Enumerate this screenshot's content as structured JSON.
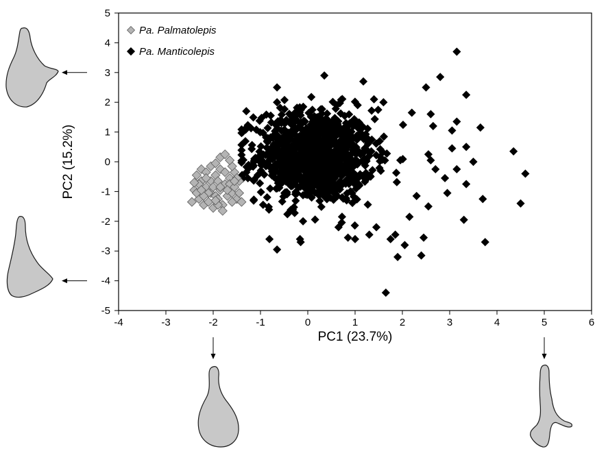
{
  "chart_data": {
    "type": "scatter",
    "xlabel": "PC1 (23.7%)",
    "ylabel": "PC2 (15.2%)",
    "xlim": [
      -4,
      6
    ],
    "ylim": [
      -5,
      5
    ],
    "xticks": [
      -4,
      -3,
      -2,
      -1,
      0,
      1,
      2,
      3,
      4,
      5,
      6
    ],
    "yticks": [
      -5,
      -4,
      -3,
      -2,
      -1,
      0,
      1,
      2,
      3,
      4,
      5
    ],
    "grid": false,
    "legend_position": "top-left",
    "marker": "diamond",
    "series": [
      {
        "name": "Pa. Palmatolepis",
        "color": "#b4b4b4",
        "stroke": "#5a5a5a",
        "points": [
          [
            -2.35,
            -0.45
          ],
          [
            -2.25,
            -0.65
          ],
          [
            -2.15,
            -0.85
          ],
          [
            -2.05,
            -1.05
          ],
          [
            -1.95,
            -1.15
          ],
          [
            -1.85,
            -0.95
          ],
          [
            -1.75,
            -0.75
          ],
          [
            -1.65,
            -0.55
          ],
          [
            -1.55,
            -0.35
          ],
          [
            -1.45,
            -0.65
          ],
          [
            -2.4,
            -0.95
          ],
          [
            -2.3,
            -1.25
          ],
          [
            -2.2,
            -1.45
          ],
          [
            -2.1,
            -1.35
          ],
          [
            -2.0,
            -1.55
          ],
          [
            -1.9,
            -1.25
          ],
          [
            -1.8,
            -1.45
          ],
          [
            -1.7,
            -1.15
          ],
          [
            -1.6,
            -1.05
          ],
          [
            -1.5,
            -1.25
          ],
          [
            -2.45,
            -1.35
          ],
          [
            -2.35,
            -1.05
          ],
          [
            -2.25,
            -0.25
          ],
          [
            -2.15,
            -0.35
          ],
          [
            -2.05,
            -0.15
          ],
          [
            -1.95,
            -0.05
          ],
          [
            -1.85,
            0.15
          ],
          [
            -1.75,
            0.25
          ],
          [
            -1.85,
            -0.25
          ],
          [
            -1.95,
            -0.45
          ],
          [
            -2.05,
            -0.65
          ],
          [
            -2.15,
            -0.55
          ],
          [
            -1.75,
            -0.35
          ],
          [
            -1.65,
            -0.75
          ],
          [
            -1.55,
            -0.85
          ],
          [
            -1.45,
            -1.05
          ],
          [
            -1.4,
            -1.35
          ],
          [
            -1.6,
            -1.35
          ],
          [
            -1.8,
            -1.65
          ],
          [
            -2.0,
            -0.85
          ],
          [
            -2.1,
            -1.05
          ],
          [
            -2.3,
            -0.75
          ],
          [
            -1.9,
            -0.65
          ],
          [
            -1.7,
            -0.95
          ],
          [
            -1.6,
            -0.15
          ],
          [
            -1.5,
            -0.55
          ],
          [
            -2.2,
            -1.15
          ],
          [
            -1.9,
            -1.45
          ],
          [
            -2.25,
            -0.95
          ],
          [
            -1.65,
            0.05
          ],
          [
            -1.55,
            -0.65
          ],
          [
            -1.85,
            -0.85
          ],
          [
            -2.4,
            -0.7
          ],
          [
            -1.95,
            -1.3
          ]
        ]
      },
      {
        "name": "Pa. Manticolepis",
        "color": "#000000",
        "stroke": "#000000",
        "points": [
          [
            3.15,
            3.7
          ],
          [
            2.8,
            2.85
          ],
          [
            0.35,
            2.9
          ],
          [
            -0.65,
            2.5
          ],
          [
            2.5,
            2.5
          ],
          [
            3.35,
            2.25
          ],
          [
            1.4,
            2.1
          ],
          [
            1.6,
            2.0
          ],
          [
            -0.65,
            2.0
          ],
          [
            -1.3,
            1.7
          ],
          [
            3.15,
            1.35
          ],
          [
            3.65,
            1.15
          ],
          [
            2.6,
            1.6
          ],
          [
            2.2,
            1.65
          ],
          [
            2.65,
            1.2
          ],
          [
            3.05,
            1.05
          ],
          [
            3.05,
            0.45
          ],
          [
            3.35,
            0.5
          ],
          [
            4.35,
            0.35
          ],
          [
            2.55,
            0.25
          ],
          [
            2.6,
            0.05
          ],
          [
            3.5,
            0.0
          ],
          [
            4.6,
            -0.4
          ],
          [
            2.7,
            -0.25
          ],
          [
            3.15,
            -0.25
          ],
          [
            2.9,
            -0.55
          ],
          [
            3.35,
            -0.75
          ],
          [
            2.95,
            -1.05
          ],
          [
            3.7,
            -1.25
          ],
          [
            4.5,
            -1.4
          ],
          [
            2.55,
            -1.5
          ],
          [
            2.3,
            -1.15
          ],
          [
            2.15,
            -1.85
          ],
          [
            3.3,
            -1.95
          ],
          [
            3.75,
            -2.7
          ],
          [
            2.45,
            -2.55
          ],
          [
            1.85,
            -2.45
          ],
          [
            1.75,
            -2.6
          ],
          [
            1.9,
            -3.2
          ],
          [
            2.4,
            -3.15
          ],
          [
            1.65,
            -4.4
          ],
          [
            -0.65,
            -2.95
          ],
          [
            -0.15,
            -2.7
          ],
          [
            -0.1,
            -2.0
          ],
          [
            0.65,
            -2.2
          ],
          [
            0.85,
            -2.55
          ],
          [
            1.3,
            -2.45
          ],
          [
            1.45,
            -2.2
          ],
          [
            1.0,
            -2.6
          ],
          [
            2.05,
            -2.8
          ]
        ]
      }
    ],
    "dense_cluster": {
      "series": "Pa. Manticolepis",
      "count": 1100,
      "x_mean": 0.15,
      "y_mean": 0.2,
      "x_sd": 0.62,
      "y_sd": 0.78,
      "x_range": [
        -1.4,
        2.3
      ],
      "y_range": [
        -2.6,
        2.7
      ]
    },
    "shape_markers": [
      {
        "axis": "y",
        "value": 3
      },
      {
        "axis": "y",
        "value": -4
      },
      {
        "axis": "x",
        "value": -2
      },
      {
        "axis": "x",
        "value": 5
      }
    ]
  }
}
